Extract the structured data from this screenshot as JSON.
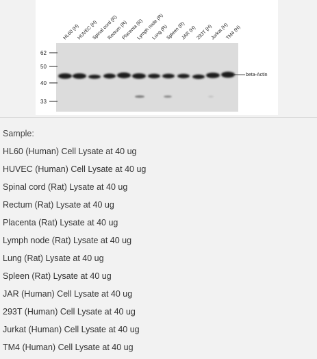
{
  "blot": {
    "lane_labels": [
      "HL60 (H)",
      "HUVEC (H)",
      "Spinal cord (R)",
      "Rectum (R)",
      "Placenta (R)",
      "Lymph node (R)",
      "Lung (R)",
      "Spleen (R)",
      "JAR (H)",
      "293T (H)",
      "Jurkat (H)",
      "TM4 (H)"
    ],
    "mw_markers": [
      "62",
      "50",
      "40",
      "33"
    ],
    "band_label": "beta-Actin"
  },
  "sample": {
    "heading": "Sample:",
    "items": [
      "HL60 (Human) Cell Lysate at 40 ug",
      "HUVEC (Human) Cell Lysate at 40 ug",
      "Spinal cord (Rat) Lysate at 40 ug",
      "Rectum (Rat) Lysate at 40 ug",
      "Placenta (Rat) Lysate at 40 ug",
      "Lymph node (Rat) Lysate at 40 ug",
      "Lung (Rat) Lysate at 40 ug",
      "Spleen (Rat) Lysate at 40 ug",
      "JAR (Human) Cell Lysate at 40 ug",
      "293T (Human) Cell Lysate at 40 ug",
      "Jurkat (Human) Cell Lysate at 40 ug",
      "TM4 (Human) Cell Lysate at 40 ug"
    ]
  }
}
